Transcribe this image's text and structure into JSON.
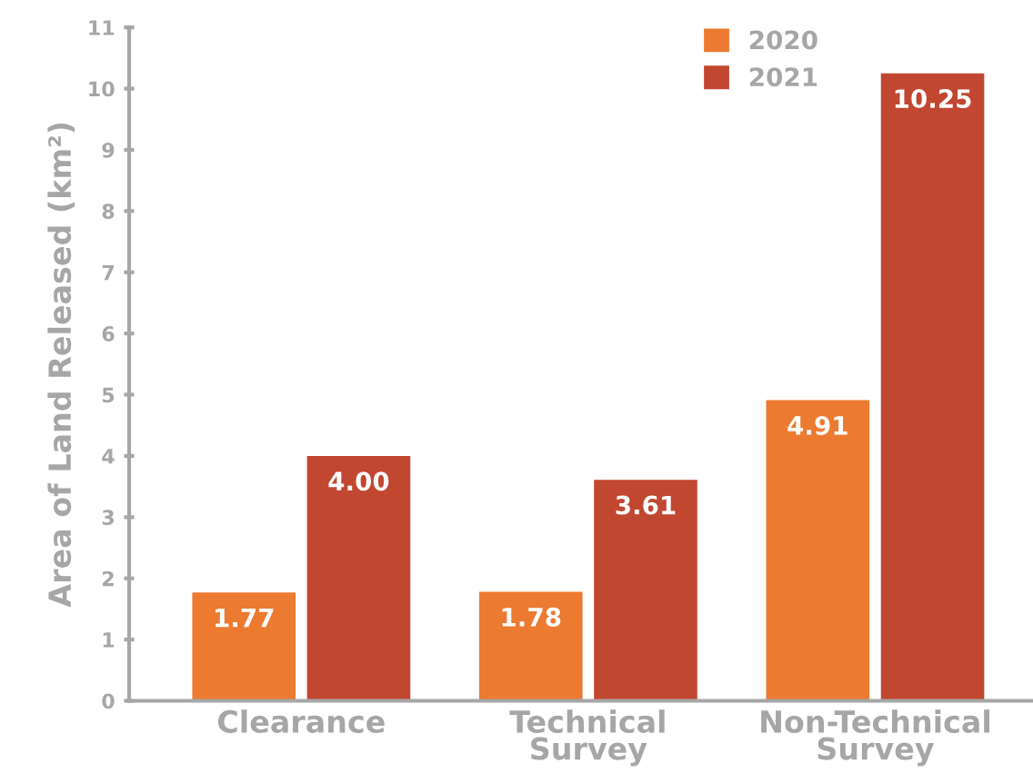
{
  "chart_data": {
    "type": "bar",
    "ylabel": "Area of Land Released (km²)",
    "categories": [
      "Clearance",
      "Technical\nSurvey",
      "Non-Technical\nSurvey"
    ],
    "series": [
      {
        "name": "2020",
        "color": "#ec7a30",
        "values": [
          1.77,
          1.78,
          4.91
        ],
        "value_labels": [
          "1.77",
          "1.78",
          "4.91"
        ]
      },
      {
        "name": "2021",
        "color": "#c14731",
        "values": [
          4.0,
          3.61,
          10.25
        ],
        "value_labels": [
          "4.00",
          "3.61",
          "10.25"
        ]
      }
    ],
    "ylim": [
      0,
      11
    ],
    "yticks": [
      0,
      1,
      2,
      3,
      4,
      5,
      6,
      7,
      8,
      9,
      10,
      11
    ],
    "grid": false,
    "legend": "top right"
  }
}
